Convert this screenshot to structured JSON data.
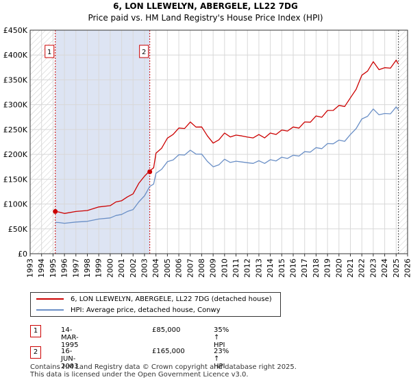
{
  "colors": {
    "price_line": "#cc0000",
    "hpi_line": "#6a8fc6",
    "shade": "#dde4f3",
    "grid": "#d8d8d8",
    "hatch": "#c8c8c8",
    "vline": "#cc0000"
  },
  "chart_data": {
    "type": "line",
    "title": "6, LON LLEWELYN, ABERGELE, LL22 7DG",
    "subtitle": "Price paid vs. HM Land Registry's House Price Index (HPI)",
    "xlim": [
      1993,
      2026
    ],
    "ylim": [
      0,
      450000
    ],
    "x_ticks": [
      "1993",
      "1994",
      "1995",
      "1996",
      "1997",
      "1998",
      "1999",
      "2000",
      "2001",
      "2002",
      "2003",
      "2004",
      "2005",
      "2006",
      "2007",
      "2008",
      "2009",
      "2010",
      "2011",
      "2012",
      "2013",
      "2014",
      "2015",
      "2016",
      "2017",
      "2018",
      "2019",
      "2020",
      "2021",
      "2022",
      "2023",
      "2024",
      "2025",
      "2026"
    ],
    "y_ticks": [
      {
        "value": 0,
        "label": "£0"
      },
      {
        "value": 50000,
        "label": "£50K"
      },
      {
        "value": 100000,
        "label": "£100K"
      },
      {
        "value": 150000,
        "label": "£150K"
      },
      {
        "value": 200000,
        "label": "£200K"
      },
      {
        "value": 250000,
        "label": "£250K"
      },
      {
        "value": 300000,
        "label": "£300K"
      },
      {
        "value": 350000,
        "label": "£350K"
      },
      {
        "value": 400000,
        "label": "£400K"
      },
      {
        "value": 450000,
        "label": "£450K"
      }
    ],
    "grid": true,
    "legend_position": "bottom",
    "series": [
      {
        "name": "6, LON LLEWELYN, ABERGELE, LL22 7DG (detached house)",
        "x": [
          1995.2,
          1995.5,
          1996.0,
          1997.0,
          1998.0,
          1999.0,
          2000.0,
          2000.5,
          2001.0,
          2001.5,
          2002.0,
          2002.5,
          2003.0,
          2003.46,
          2003.8,
          2004.0,
          2004.5,
          2005.0,
          2005.5,
          2006.0,
          2006.5,
          2007.0,
          2007.5,
          2008.0,
          2008.5,
          2009.0,
          2009.5,
          2010.0,
          2010.5,
          2011.0,
          2011.5,
          2012.0,
          2012.5,
          2013.0,
          2013.5,
          2014.0,
          2014.5,
          2015.0,
          2015.5,
          2016.0,
          2016.5,
          2017.0,
          2017.5,
          2018.0,
          2018.5,
          2019.0,
          2019.5,
          2020.0,
          2020.5,
          2021.0,
          2021.5,
          2022.0,
          2022.5,
          2023.0,
          2023.5,
          2024.0,
          2024.5,
          2025.0,
          2025.2
        ],
        "values": [
          85000,
          83000,
          82000,
          84000,
          88000,
          93000,
          98000,
          103000,
          108000,
          113000,
          122000,
          140000,
          158000,
          165000,
          175000,
          200000,
          215000,
          230000,
          243000,
          250000,
          255000,
          262000,
          258000,
          252000,
          240000,
          220000,
          232000,
          240000,
          238000,
          236000,
          240000,
          232000,
          236000,
          237000,
          236000,
          240000,
          243000,
          246000,
          250000,
          252000,
          256000,
          262000,
          268000,
          274000,
          278000,
          285000,
          292000,
          295000,
          300000,
          310000,
          335000,
          355000,
          372000,
          382000,
          375000,
          370000,
          378000,
          385000,
          382000
        ]
      },
      {
        "name": "HPI: Average price, detached house, Conwy",
        "x": [
          1995.2,
          1995.5,
          1996.0,
          1997.0,
          1998.0,
          1999.0,
          2000.0,
          2000.5,
          2001.0,
          2001.5,
          2002.0,
          2002.5,
          2003.0,
          2003.46,
          2003.8,
          2004.0,
          2004.5,
          2005.0,
          2005.5,
          2006.0,
          2006.5,
          2007.0,
          2007.5,
          2008.0,
          2008.5,
          2009.0,
          2009.5,
          2010.0,
          2010.5,
          2011.0,
          2011.5,
          2012.0,
          2012.5,
          2013.0,
          2013.5,
          2014.0,
          2014.5,
          2015.0,
          2015.5,
          2016.0,
          2016.5,
          2017.0,
          2017.5,
          2018.0,
          2018.5,
          2019.0,
          2019.5,
          2020.0,
          2020.5,
          2021.0,
          2021.5,
          2022.0,
          2022.5,
          2023.0,
          2023.5,
          2024.0,
          2024.5,
          2025.0,
          2025.2
        ],
        "values": [
          63000,
          62000,
          62000,
          63000,
          66000,
          69000,
          73000,
          76000,
          80000,
          84000,
          90000,
          103000,
          118000,
          134000,
          142000,
          160000,
          172000,
          183000,
          191000,
          197000,
          201000,
          206000,
          203000,
          198000,
          188000,
          173000,
          181000,
          188000,
          186000,
          184000,
          187000,
          181000,
          184000,
          185000,
          184000,
          187000,
          189000,
          192000,
          194000,
          196000,
          199000,
          203000,
          207000,
          211000,
          214000,
          219000,
          224000,
          226000,
          229000,
          237000,
          255000,
          268000,
          280000,
          288000,
          283000,
          279000,
          285000,
          292000,
          290000
        ]
      }
    ],
    "annotations": [
      {
        "label": "1",
        "x": 1995.2,
        "value": 85000
      },
      {
        "label": "2",
        "x": 2003.46,
        "value": 165000
      }
    ]
  },
  "legend": {
    "items": [
      {
        "label": "6, LON LLEWELYN, ABERGELE, LL22 7DG (detached house)"
      },
      {
        "label": "HPI: Average price, detached house, Conwy"
      }
    ]
  },
  "sales": [
    {
      "num": "1",
      "date": "14-MAR-1995",
      "price": "£85,000",
      "hpi": "35% ↑ HPI"
    },
    {
      "num": "2",
      "date": "16-JUN-2003",
      "price": "£165,000",
      "hpi": "23% ↑ HPI"
    }
  ],
  "footer": {
    "line1": "Contains HM Land Registry data © Crown copyright and database right 2025.",
    "line2": "This data is licensed under the Open Government Licence v3.0."
  }
}
